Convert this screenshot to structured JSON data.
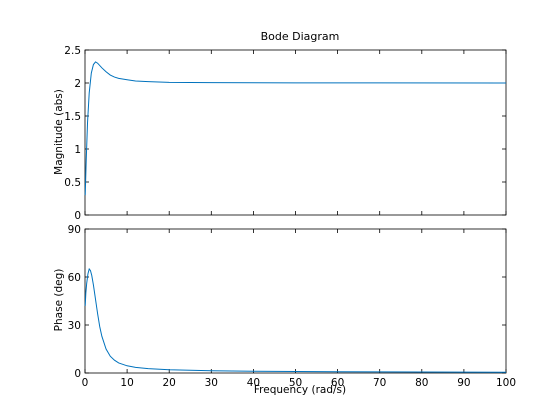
{
  "title": "Bode Diagram",
  "colors": {
    "series": "#0072bd",
    "axes": "#000000",
    "background": "#ffffff"
  },
  "chart_data": [
    {
      "type": "line",
      "panel": "magnitude",
      "ylabel": "Magnitude (abs)",
      "xlim": [
        0,
        100
      ],
      "ylim": [
        0,
        2.5
      ],
      "yticks": [
        "0",
        "0.5",
        "1",
        "1.5",
        "2",
        "2.5"
      ],
      "ytick_values": [
        0,
        0.5,
        1,
        1.5,
        2,
        2.5
      ],
      "xtick_labels_visible": false,
      "grid": false,
      "series": [
        {
          "x": [
            0.05,
            0.3,
            0.6,
            1.0,
            1.5,
            2.0,
            2.5,
            3.0,
            4.0,
            5.0,
            6.0,
            7.0,
            8.0,
            10.0,
            12.0,
            15.0,
            20.0,
            30.0,
            50.0,
            100.0
          ],
          "y": [
            0.3,
            0.85,
            1.4,
            1.85,
            2.15,
            2.28,
            2.32,
            2.3,
            2.23,
            2.17,
            2.12,
            2.09,
            2.07,
            2.05,
            2.03,
            2.02,
            2.01,
            2.005,
            2.002,
            2.0
          ]
        }
      ]
    },
    {
      "type": "line",
      "panel": "phase",
      "xlabel": "Frequency  (rad/s)",
      "ylabel": "Phase (deg)",
      "xlim": [
        0,
        100
      ],
      "ylim": [
        0,
        90
      ],
      "xticks": [
        "0",
        "10",
        "20",
        "30",
        "40",
        "50",
        "60",
        "70",
        "80",
        "90",
        "100"
      ],
      "xtick_values": [
        0,
        10,
        20,
        30,
        40,
        50,
        60,
        70,
        80,
        90,
        100
      ],
      "yticks": [
        "0",
        "30",
        "60",
        "90"
      ],
      "ytick_values": [
        0,
        30,
        60,
        90
      ],
      "grid": false,
      "series": [
        {
          "x": [
            0.05,
            0.2,
            0.4,
            0.7,
            1.0,
            1.3,
            1.6,
            2.0,
            2.5,
            3.0,
            3.5,
            4.0,
            5.0,
            6.0,
            7.0,
            8.0,
            10.0,
            12.0,
            15.0,
            20.0,
            30.0,
            40.0,
            60.0,
            80.0,
            100.0
          ],
          "y": [
            42,
            50,
            56,
            62,
            65,
            64,
            61,
            55,
            46,
            37,
            29,
            23,
            15,
            10.5,
            8,
            6.3,
            4.5,
            3.5,
            2.7,
            2.0,
            1.4,
            1.1,
            0.8,
            0.6,
            0.5
          ]
        }
      ]
    }
  ]
}
